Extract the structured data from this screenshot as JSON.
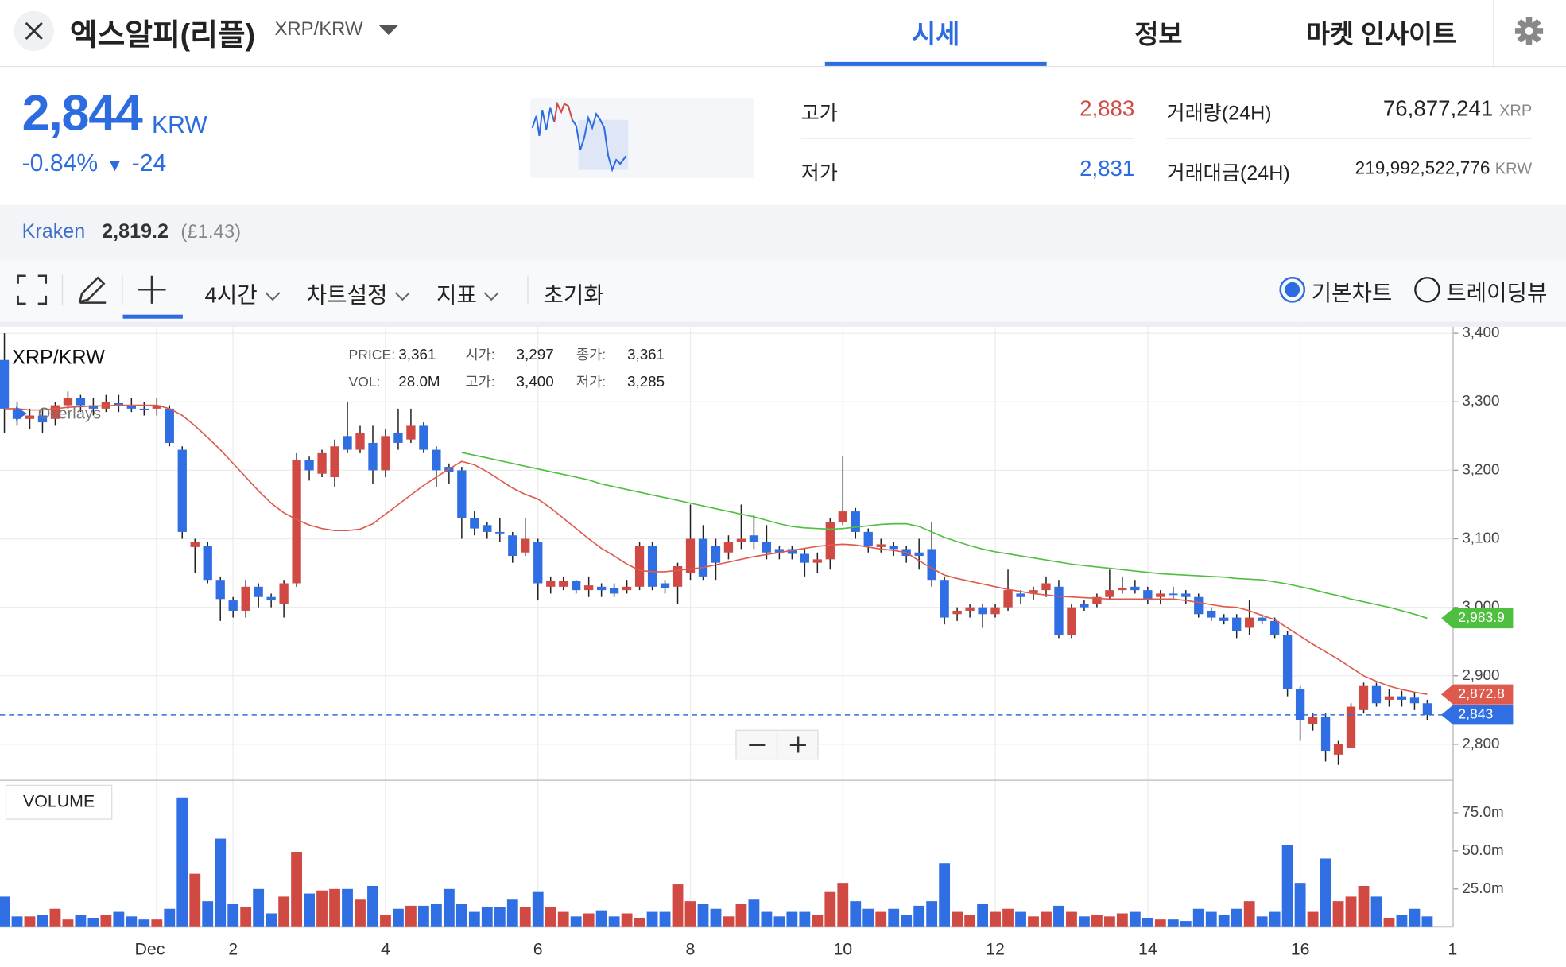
{
  "header": {
    "title": "엑스알피(리플)",
    "pair": "XRP/KRW"
  },
  "tabs": [
    "시세",
    "정보",
    "마켓 인사이트"
  ],
  "price": {
    "value": "2,844",
    "unit": "KRW",
    "change_pct": "-0.84%",
    "change": "-24"
  },
  "stats": [
    {
      "label": "고가",
      "value": "2,883"
    },
    {
      "label": "저가",
      "value": "2,831"
    },
    {
      "label": "거래량(24H)",
      "value": "76,877,241",
      "unit": "XRP"
    },
    {
      "label": "거래대금(24H)",
      "value": "219,992,522,776",
      "unit": "KRW"
    }
  ],
  "exchange": {
    "name": "Kraken",
    "price": "2,819.2",
    "note": "(£1.43)"
  },
  "toolbar": {
    "interval": "4시간",
    "settings": "차트설정",
    "indicators": "지표",
    "reset": "초기화",
    "modes": [
      "기본차트",
      "트레이딩뷰"
    ]
  },
  "chart_data": {
    "type": "candlestick",
    "title": "XRP/KRW",
    "overlays_label": "Overlays",
    "up_color": "#d04a43",
    "down_color": "#2f6ee3",
    "info": [
      [
        {
          "label": "PRICE:",
          "value": "3,361"
        },
        {
          "label": "시가:",
          "value": "3,297"
        },
        {
          "label": "종가:",
          "value": "3,361"
        }
      ],
      [
        {
          "label": "VOL:",
          "value": "28.0M"
        },
        {
          "label": "고가:",
          "value": "3,400"
        },
        {
          "label": "저가:",
          "value": "3,285"
        }
      ]
    ],
    "categories": [
      null,
      null,
      null,
      null,
      null,
      null,
      null,
      null,
      null,
      null,
      null,
      null,
      "Dec",
      null,
      null,
      null,
      null,
      null,
      "2",
      null,
      null,
      null,
      null,
      null,
      null,
      null,
      null,
      null,
      null,
      null,
      "4",
      null,
      null,
      null,
      null,
      null,
      null,
      null,
      null,
      null,
      null,
      null,
      "6",
      null,
      null,
      null,
      null,
      null,
      null,
      null,
      null,
      null,
      null,
      null,
      "8",
      null,
      null,
      null,
      null,
      null,
      null,
      null,
      null,
      null,
      null,
      null,
      "10",
      null,
      null,
      null,
      null,
      null,
      null,
      null,
      null,
      null,
      null,
      null,
      "12",
      null,
      null,
      null,
      null,
      null,
      null,
      null,
      null,
      null,
      null,
      null,
      "14",
      null,
      null,
      null,
      null,
      null,
      null,
      null,
      null,
      null,
      null,
      null,
      "16",
      null,
      null,
      null,
      null,
      null,
      null,
      null,
      null,
      null,
      null,
      null,
      "1"
    ],
    "open": [
      3361,
      3290,
      3275,
      3280,
      3275,
      3295,
      3305,
      3295,
      3290,
      3298,
      3295,
      3290,
      3290,
      3290,
      3230,
      3088,
      3090,
      3040,
      3010,
      2995,
      3030,
      3015,
      3005,
      3035,
      3215,
      3195,
      3190,
      3250,
      3230,
      3240,
      3200,
      3255,
      3245,
      3265,
      3230,
      3205,
      3200,
      3130,
      3120,
      3110,
      3105,
      3080,
      3095,
      3030,
      3030,
      3038,
      3025,
      3030,
      3028,
      3025,
      3030,
      3090,
      3035,
      3030,
      3050,
      3100,
      3090,
      3080,
      3095,
      3105,
      3095,
      3085,
      3085,
      3078,
      3065,
      3070,
      3125,
      3140,
      3110,
      3088,
      3090,
      3085,
      3080,
      3085,
      3040,
      2990,
      2995,
      3000,
      2990,
      3000,
      3020,
      3020,
      3025,
      3030,
      2960,
      3005,
      3005,
      3015,
      3025,
      3030,
      3025,
      3015,
      3020,
      3020,
      3015,
      2995,
      2985,
      2985,
      2970,
      2985,
      2980,
      2960,
      2880,
      2830,
      2840,
      2785,
      2795,
      2850,
      2885,
      2865,
      2870,
      2868,
      2860,
      null,
      null
    ],
    "high": [
      3400,
      3300,
      3290,
      3290,
      3300,
      3315,
      3310,
      3305,
      3310,
      3310,
      3305,
      3300,
      3305,
      3295,
      3235,
      3100,
      3095,
      3045,
      3015,
      3040,
      3035,
      3020,
      3040,
      3225,
      3220,
      3230,
      3245,
      3300,
      3265,
      3265,
      3260,
      3290,
      3290,
      3270,
      3235,
      3210,
      3205,
      3140,
      3125,
      3130,
      3110,
      3130,
      3100,
      3045,
      3045,
      3040,
      3045,
      3035,
      3035,
      3040,
      3095,
      3095,
      3040,
      3065,
      3150,
      3120,
      3100,
      3105,
      3150,
      3135,
      3120,
      3090,
      3090,
      3085,
      3080,
      3130,
      3220,
      3145,
      3115,
      3100,
      3095,
      3090,
      3100,
      3125,
      3045,
      3000,
      3005,
      3005,
      3005,
      3055,
      3025,
      3030,
      3045,
      3040,
      3005,
      3010,
      3020,
      3055,
      3045,
      3040,
      3030,
      3025,
      3030,
      3025,
      3020,
      3000,
      2990,
      2990,
      3010,
      2990,
      2985,
      2965,
      2885,
      2845,
      2845,
      2805,
      2860,
      2890,
      2890,
      2880,
      2878,
      2875,
      2865,
      null,
      null
    ],
    "low": [
      3255,
      3265,
      3260,
      3255,
      3265,
      3290,
      3285,
      3280,
      3285,
      3285,
      3285,
      3280,
      3280,
      3235,
      3100,
      3050,
      3035,
      2980,
      2985,
      2985,
      3000,
      3000,
      2985,
      3030,
      3185,
      3190,
      3175,
      3225,
      3225,
      3180,
      3190,
      3230,
      3240,
      3225,
      3175,
      3180,
      3100,
      3105,
      3100,
      3095,
      3065,
      3075,
      3010,
      3020,
      3025,
      3020,
      3015,
      3015,
      3015,
      3020,
      3025,
      3025,
      3020,
      3005,
      3040,
      3040,
      3040,
      3070,
      3085,
      3085,
      3070,
      3070,
      3070,
      3045,
      3050,
      3055,
      3120,
      3100,
      3080,
      3080,
      3075,
      3065,
      3055,
      3030,
      2975,
      2980,
      2985,
      2970,
      2985,
      2995,
      3005,
      3010,
      3015,
      2955,
      2955,
      2995,
      3000,
      3010,
      3020,
      3020,
      3005,
      3005,
      3010,
      3005,
      2985,
      2980,
      2975,
      2955,
      2960,
      2975,
      2955,
      2870,
      2805,
      2820,
      2775,
      2770,
      2800,
      2845,
      2855,
      2855,
      2855,
      2850,
      2835,
      null,
      null
    ],
    "close": [
      3290,
      3275,
      3280,
      3270,
      3295,
      3305,
      3295,
      3290,
      3300,
      3295,
      3290,
      3288,
      3295,
      3240,
      3110,
      3095,
      3040,
      3012,
      2995,
      3030,
      3015,
      3010,
      3035,
      3215,
      3200,
      3225,
      3235,
      3230,
      3255,
      3200,
      3250,
      3240,
      3265,
      3230,
      3200,
      3198,
      3130,
      3115,
      3110,
      3108,
      3075,
      3100,
      3035,
      3038,
      3038,
      3025,
      3032,
      3025,
      3020,
      3030,
      3090,
      3030,
      3028,
      3060,
      3100,
      3045,
      3065,
      3095,
      3100,
      3095,
      3080,
      3080,
      3078,
      3065,
      3070,
      3125,
      3140,
      3110,
      3090,
      3092,
      3085,
      3075,
      3075,
      3040,
      2985,
      2995,
      3000,
      2990,
      3000,
      3025,
      3015,
      3025,
      3035,
      2960,
      3000,
      3000,
      3015,
      3025,
      3028,
      3025,
      3010,
      3020,
      3018,
      3015,
      2990,
      2985,
      2980,
      2965,
      2985,
      2980,
      2960,
      2880,
      2835,
      2840,
      2790,
      2800,
      2855,
      2885,
      2860,
      2870,
      2865,
      2860,
      2843,
      null,
      null
    ],
    "lines": [
      {
        "color": "#dd5a4c",
        "last_label": "2,872.8",
        "values": [
          3290,
          3290,
          3288,
          3288,
          3290,
          3292,
          3293,
          3294,
          3294,
          3295,
          3295,
          3295,
          3295,
          3290,
          3280,
          3265,
          3248,
          3230,
          3210,
          3190,
          3170,
          3152,
          3138,
          3128,
          3120,
          3115,
          3112,
          3112,
          3114,
          3122,
          3136,
          3150,
          3164,
          3178,
          3190,
          3202,
          3213,
          3208,
          3198,
          3186,
          3174,
          3165,
          3158,
          3145,
          3130,
          3115,
          3100,
          3086,
          3075,
          3063,
          3054,
          3052,
          3052,
          3054,
          3056,
          3058,
          3062,
          3066,
          3070,
          3074,
          3077,
          3080,
          3083,
          3086,
          3089,
          3091,
          3092,
          3091,
          3088,
          3085,
          3083,
          3080,
          3068,
          3057,
          3047,
          3042,
          3038,
          3034,
          3030,
          3026,
          3023,
          3020,
          3018,
          3016,
          3015,
          3014,
          3013,
          3012,
          3012,
          3012,
          3012,
          3012,
          3012,
          3010,
          3007,
          3004,
          3001,
          3000,
          2995,
          2988,
          2982,
          2970,
          2958,
          2946,
          2935,
          2924,
          2912,
          2900,
          2892,
          2885,
          2880,
          2876,
          2872.8,
          null,
          null
        ]
      },
      {
        "color": "#4fbf3f",
        "last_label": "2,983.9",
        "values": [
          null,
          null,
          null,
          null,
          null,
          null,
          null,
          null,
          null,
          null,
          null,
          null,
          null,
          null,
          null,
          null,
          null,
          null,
          null,
          null,
          null,
          null,
          null,
          null,
          null,
          null,
          null,
          null,
          null,
          null,
          null,
          null,
          null,
          null,
          null,
          null,
          3226,
          3222,
          3218,
          3214,
          3210,
          3206,
          3202,
          3198,
          3194,
          3190,
          3186,
          3180,
          3176,
          3172,
          3168,
          3164,
          3160,
          3156,
          3152,
          3148,
          3144,
          3140,
          3136,
          3132,
          3127,
          3122,
          3118,
          3116,
          3115,
          3114,
          3115,
          3117,
          3119,
          3121,
          3122,
          3122,
          3118,
          3110,
          3102,
          3096,
          3090,
          3085,
          3081,
          3078,
          3075,
          3072,
          3069,
          3066,
          3063,
          3061,
          3059,
          3057,
          3055,
          3053,
          3051,
          3049,
          3048,
          3047,
          3046,
          3045,
          3044,
          3042,
          3041,
          3040,
          3037,
          3034,
          3030,
          3026,
          3021,
          3017,
          3012,
          3008,
          3004,
          3000,
          2995,
          2990,
          2983.9,
          null,
          null
        ]
      }
    ],
    "current": {
      "value": 2843,
      "label": "2,843",
      "color": "#2f6ee3"
    },
    "ylim": [
      2749,
      3417
    ],
    "yticks": [
      {
        "value": 2800,
        "label": "2,800"
      },
      {
        "value": 2900,
        "label": "2,900"
      },
      {
        "value": 3000,
        "label": "3,000"
      },
      {
        "value": 3100,
        "label": "3,100"
      },
      {
        "value": 3200,
        "label": "3,200"
      },
      {
        "value": 3300,
        "label": "3,300"
      },
      {
        "value": 3400,
        "label": "3,400"
      }
    ],
    "grid": true,
    "volume": {
      "title": "VOLUME",
      "ylim": [
        0,
        95
      ],
      "yticks": [
        {
          "value": 25,
          "label": "25.0m"
        },
        {
          "value": 50,
          "label": "50.0m"
        },
        {
          "value": 75,
          "label": "75.0m"
        }
      ],
      "values": [
        20,
        7,
        7,
        8,
        12,
        5,
        8,
        6,
        8,
        10,
        7,
        5,
        5,
        12,
        85,
        35,
        17,
        58,
        15,
        13,
        25,
        9,
        20,
        49,
        22,
        24,
        25,
        25,
        18,
        27,
        8,
        12,
        14,
        14,
        15,
        25,
        15,
        10,
        13,
        13,
        18,
        13,
        23,
        13,
        10,
        7,
        9,
        11,
        7,
        9,
        6,
        10,
        10,
        28,
        17,
        15,
        12,
        7,
        15,
        18,
        10,
        7,
        10,
        10,
        8,
        23,
        29,
        17,
        12,
        10,
        12,
        8,
        14,
        17,
        42,
        10,
        8,
        15,
        10,
        12,
        10,
        7,
        10,
        14,
        10,
        7,
        8,
        7,
        9,
        10,
        6,
        5,
        5,
        4,
        12,
        10,
        8,
        12,
        17,
        7,
        10,
        54,
        29,
        10,
        45,
        17,
        20,
        27,
        20,
        6,
        8,
        12,
        7,
        null,
        null
      ]
    }
  }
}
